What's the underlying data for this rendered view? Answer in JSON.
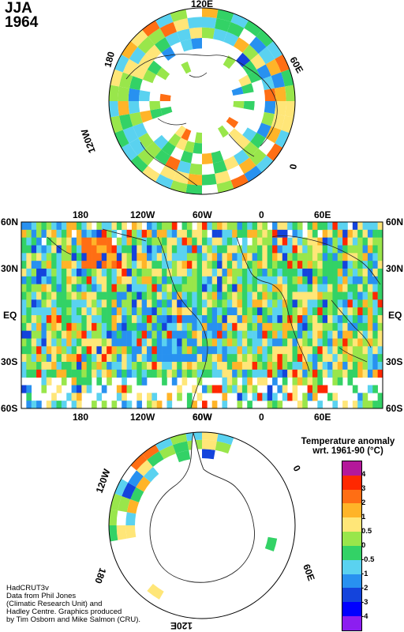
{
  "season": "JJA",
  "year": "1964",
  "north_polar_labels": {
    "top": "120E",
    "right": "60E",
    "right_low": "0",
    "left": "180",
    "left_low": "120W"
  },
  "map_lat_labels": [
    "60N",
    "30N",
    "EQ",
    "30S",
    "60S"
  ],
  "map_lon_labels": [
    "180",
    "120W",
    "60W",
    "0",
    "60E"
  ],
  "south_polar_labels": {
    "top": "60W",
    "right": "0",
    "left": "120W",
    "left_low": "180",
    "right_low": "60E",
    "bottom": "120E"
  },
  "legend": {
    "title_line1": "Temperature anomaly",
    "title_line2": "wrt. 1961-90  (°C)",
    "ticks": [
      "4",
      "3",
      "2",
      "1",
      "0.5",
      "0",
      "-0.5",
      "-1",
      "-2",
      "-3",
      "-4"
    ],
    "colors": [
      "#b4189a",
      "#ff2800",
      "#ff6e14",
      "#ffb428",
      "#ffe678",
      "#99e64b",
      "#33d266",
      "#5ad2f0",
      "#2891f0",
      "#1444dc",
      "#0000ff",
      "#8c1ef0"
    ]
  },
  "credits": [
    "HadCRUT3v",
    "Data from Phil Jones",
    "(Climatic Research Unit) and",
    "Hadley Centre.  Graphics produced",
    "by Tim Osborn and Mike Salmon (CRU)."
  ]
}
